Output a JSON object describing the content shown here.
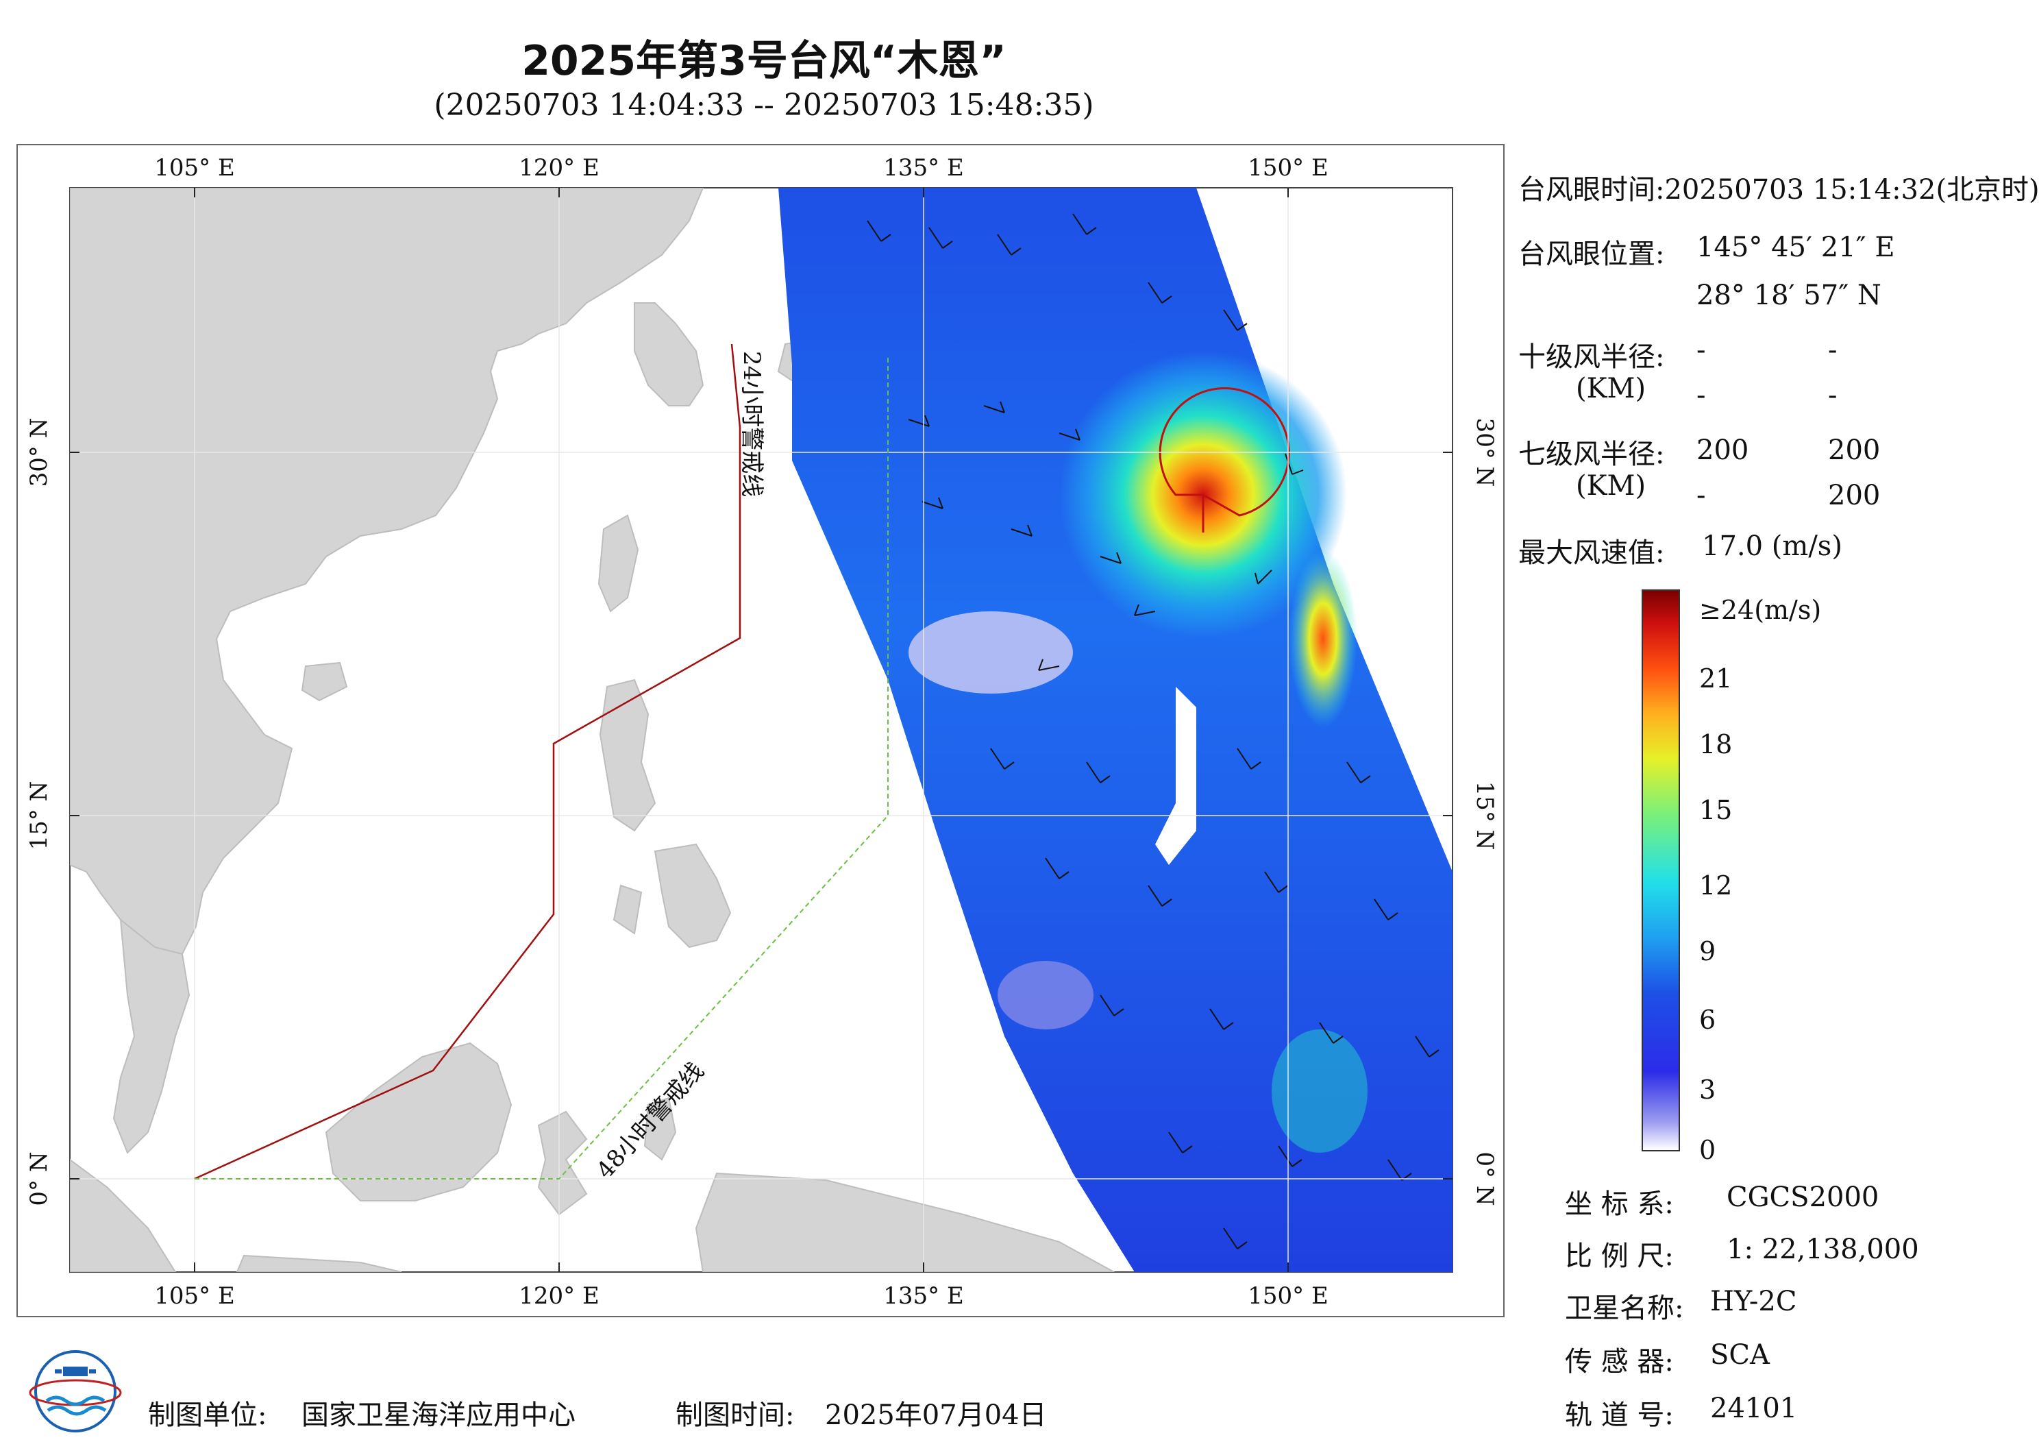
{
  "title": "2025年第3号台风“木恩”",
  "subtitle": "(20250703 14:04:33 -- 20250703 15:48:35)",
  "axes": {
    "lon_ticks": [
      "105° E",
      "120° E",
      "135° E",
      "150° E"
    ],
    "lat_ticks": [
      "30° N",
      "15° N",
      "0° N"
    ]
  },
  "map_labels": {
    "warning_24h": "24小时警戒线",
    "warning_48h": "48小时警戒线"
  },
  "info": {
    "eye_time_label": "台风眼时间:",
    "eye_time_value": "20250703 15:14:32(北京时)",
    "eye_pos_label": "台风眼位置:",
    "eye_lon": "145° 45′ 21″ E",
    "eye_lat": "28° 18′ 57″ N",
    "r10_label": "十级风半径:",
    "r10_unit": "(KM)",
    "r10_values": [
      "-",
      "-",
      "-",
      "-"
    ],
    "r7_label": "七级风半径:",
    "r7_unit": "(KM)",
    "r7_values": [
      "200",
      "200",
      "-",
      "200"
    ],
    "max_wind_label": "最大风速值:",
    "max_wind_value": "17.0 (m/s)"
  },
  "colorbar": {
    "labels": [
      "≥24(m/s)",
      "21",
      "18",
      "15",
      "12",
      "9",
      "6",
      "3",
      "0"
    ],
    "colors": [
      "#ffffff",
      "#9c9cf0",
      "#2c2ce8",
      "#1e50e6",
      "#1fa0f0",
      "#22e0e8",
      "#7af07a",
      "#e6f028",
      "#ffb020",
      "#ff5010",
      "#d01010",
      "#7a0000"
    ]
  },
  "metadata": {
    "crs_label": "坐 标 系:",
    "crs_value": "CGCS2000",
    "scale_label": "比 例 尺:",
    "scale_value": "1: 22,138,000",
    "satellite_label": "卫星名称:",
    "satellite_value": "HY-2C",
    "sensor_label": "传 感 器:",
    "sensor_value": "SCA",
    "orbit_label": "轨 道 号:",
    "orbit_value": "24101"
  },
  "footer": {
    "unit_label": "制图单位:",
    "unit_value": "国家卫星海洋应用中心",
    "date_label": "制图时间:",
    "date_value": "2025年07月04日"
  }
}
